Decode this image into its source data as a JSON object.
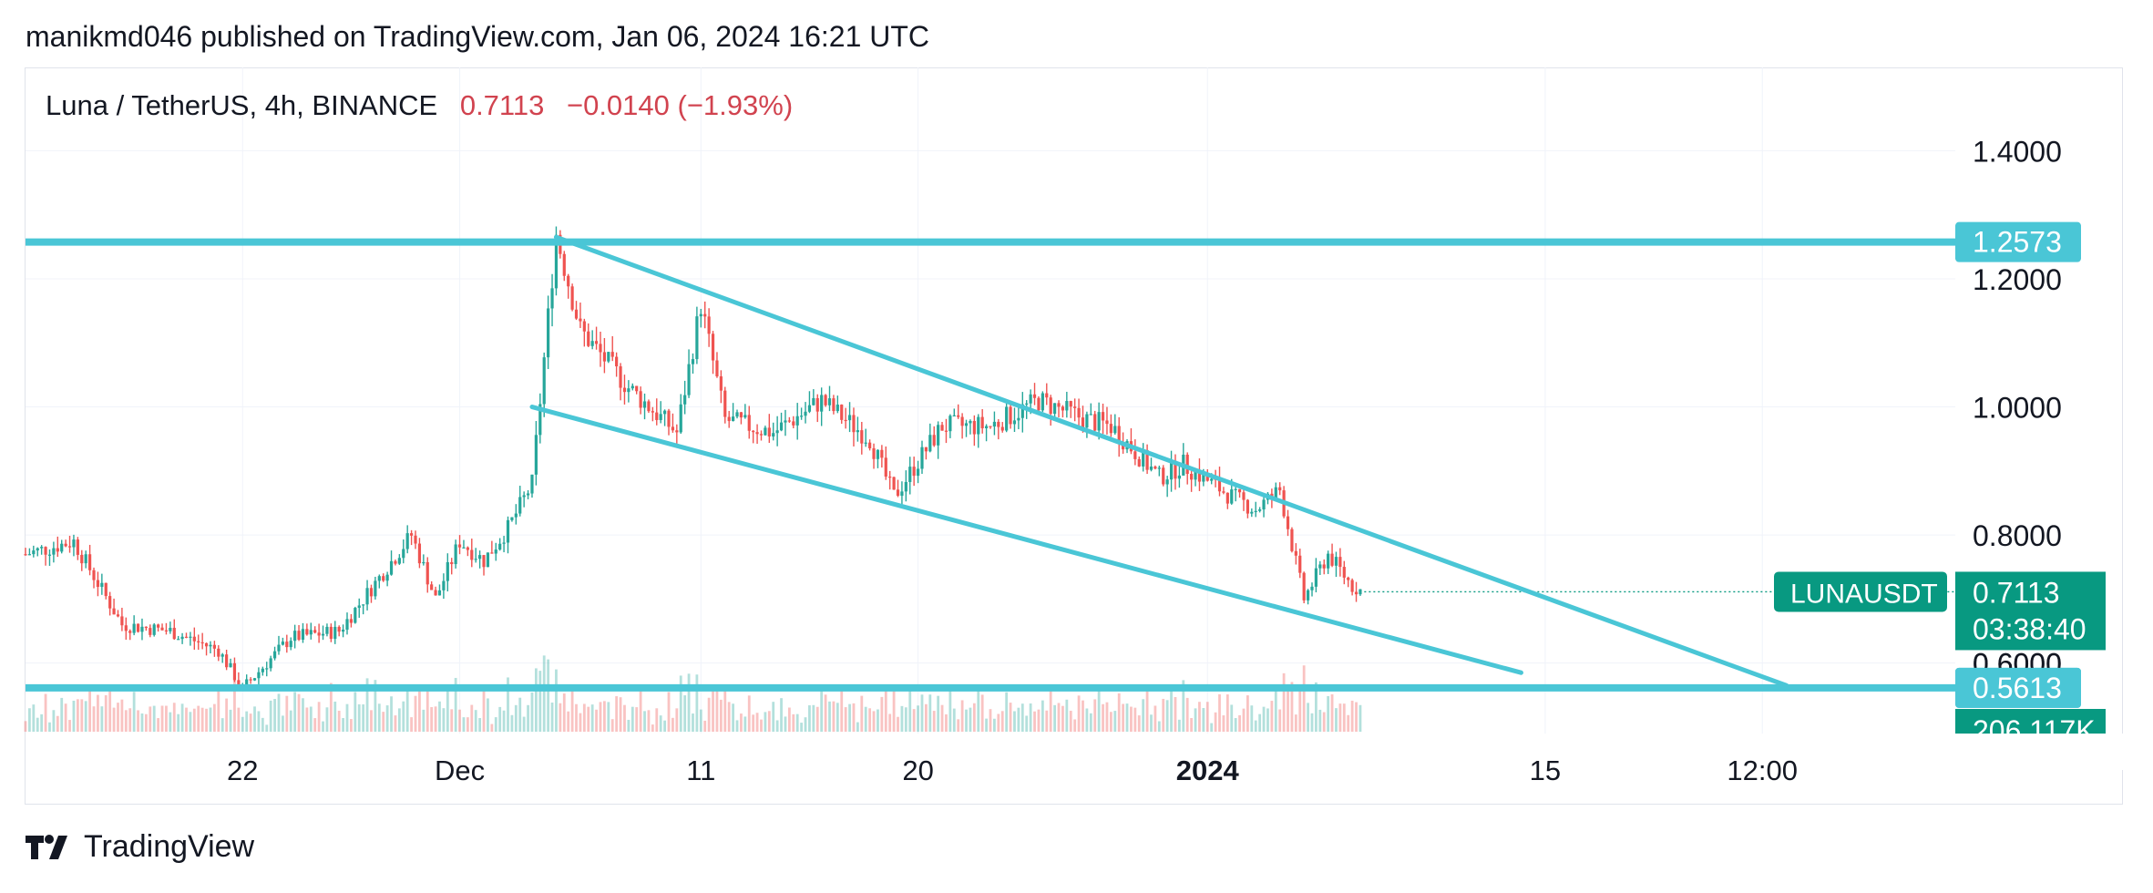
{
  "header": {
    "publish_text": "manikmd046 published on TradingView.com, Jan 06, 2024 16:21 UTC"
  },
  "symbol": {
    "title": "Luna / TetherUS, 4h, BINANCE",
    "last": "0.7113",
    "change": "−0.0140 (−1.93%)"
  },
  "footer": {
    "brand": "TradingView"
  },
  "colors": {
    "up": "#26a69a",
    "down": "#ef5350",
    "line": "#4ac6d6",
    "grid": "#f0f3fa",
    "label_green": "#089981",
    "label_cyan": "#4ac6d6"
  },
  "chart_data": {
    "type": "candlestick",
    "title": "Luna / TetherUS, 4h, BINANCE",
    "y_axis": {
      "ticks": [
        "1.4000",
        "1.2000",
        "1.0000",
        "0.8000",
        "0.6000"
      ],
      "tick_values": [
        1.4,
        1.2,
        1.0,
        0.8,
        0.6
      ],
      "ylim": [
        0.49,
        1.53
      ]
    },
    "x_axis": {
      "ticks": [
        "22",
        "Dec",
        "11",
        "20",
        "2024",
        "15",
        "12:00"
      ],
      "tick_dates": [
        "2023-11-22",
        "2023-12-01",
        "2023-12-11",
        "2023-12-20",
        "2024-01-01",
        "2024-01-15",
        "2024-01-24"
      ],
      "xlim": [
        "2023-11-13",
        "2024-02-01"
      ]
    },
    "price_labels": [
      {
        "name": "resistance",
        "value": "1.2573"
      },
      {
        "name": "symbol",
        "text": "LUNAUSDT",
        "value": "0.7113",
        "countdown": "03:38:40"
      },
      {
        "name": "support",
        "value": "0.5613"
      },
      {
        "name": "volume",
        "value": "206.117K"
      }
    ],
    "horizontal_lines": [
      {
        "name": "resistance",
        "price": 1.2573
      },
      {
        "name": "support",
        "price": 0.5613
      }
    ],
    "trend_lines": [
      {
        "name": "upper-channel",
        "from": [
          "2023-12-05",
          1.265
        ],
        "to": [
          "2024-01-25",
          0.565
        ]
      },
      {
        "name": "lower-channel",
        "from": [
          "2023-12-04",
          1.0
        ],
        "to": [
          "2024-01-14",
          0.585
        ]
      }
    ],
    "price_path": [
      [
        "2023-11-13",
        0.77
      ],
      [
        "2023-11-15",
        0.79
      ],
      [
        "2023-11-17",
        0.66
      ],
      [
        "2023-11-19",
        0.65
      ],
      [
        "2023-11-21",
        0.62
      ],
      [
        "2023-11-22",
        0.56
      ],
      [
        "2023-11-24",
        0.64
      ],
      [
        "2023-11-26",
        0.65
      ],
      [
        "2023-11-28",
        0.75
      ],
      [
        "2023-11-29",
        0.8
      ],
      [
        "2023-11-30",
        0.7
      ],
      [
        "2023-12-01",
        0.79
      ],
      [
        "2023-12-02",
        0.76
      ],
      [
        "2023-12-03",
        0.81
      ],
      [
        "2023-12-04",
        0.88
      ],
      [
        "2023-12-05",
        1.27
      ],
      [
        "2023-12-06",
        1.12
      ],
      [
        "2023-12-08",
        1.03
      ],
      [
        "2023-12-10",
        0.96
      ],
      [
        "2023-12-11",
        1.16
      ],
      [
        "2023-12-12",
        0.98
      ],
      [
        "2023-12-14",
        0.96
      ],
      [
        "2023-12-16",
        1.01
      ],
      [
        "2023-12-18",
        0.95
      ],
      [
        "2023-12-19",
        0.86
      ],
      [
        "2023-12-21",
        0.97
      ],
      [
        "2023-12-23",
        0.97
      ],
      [
        "2023-12-25",
        1.01
      ],
      [
        "2023-12-27",
        0.98
      ],
      [
        "2023-12-28",
        0.97
      ],
      [
        "2023-12-30",
        0.89
      ],
      [
        "2023-12-31",
        0.91
      ],
      [
        "2024-01-02",
        0.86
      ],
      [
        "2024-01-03",
        0.84
      ],
      [
        "2024-01-04",
        0.87
      ],
      [
        "2024-01-05",
        0.7
      ],
      [
        "2024-01-06",
        0.77
      ],
      [
        "2024-01-07",
        0.72
      ],
      [
        "2024-01-07T12:00",
        0.7113
      ]
    ]
  }
}
